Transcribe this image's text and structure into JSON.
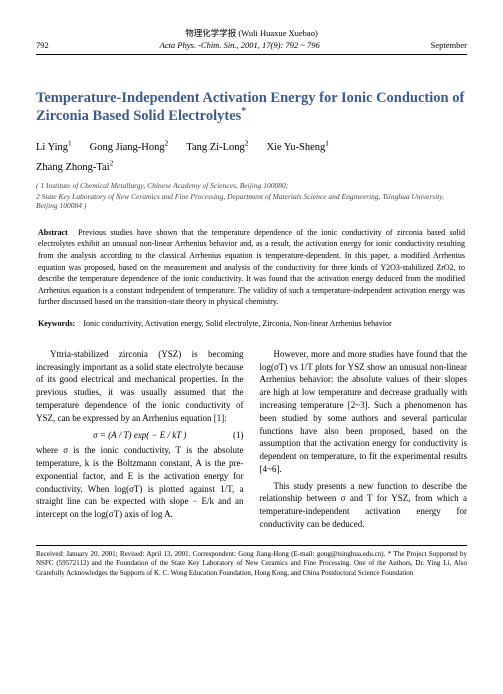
{
  "header": {
    "journal_cn": "物理化学学报 (Wuli Huaxue Xuebao)",
    "page_left": "792",
    "center": "Acta Phys. -Chim. Sin., 2001, 17(9): 792 ~ 796",
    "page_right": "September"
  },
  "title": "Temperature-Independent Activation Energy for Ionic Conduction of Zirconia Based Solid Electrolytes",
  "title_sup": "*",
  "authors_line1": [
    {
      "name": "Li Ying",
      "sup": "1"
    },
    {
      "name": "Gong Jiang-Hong",
      "sup": "2"
    },
    {
      "name": "Tang Zi-Long",
      "sup": "2"
    },
    {
      "name": "Xie Yu-Sheng",
      "sup": "1"
    }
  ],
  "authors_line2": [
    {
      "name": "Zhang Zhong-Tai",
      "sup": "2"
    }
  ],
  "affiliations": [
    "( 1 Institute of Chemical Metallurgy, Chinese Academy of Sciences, Beijing   100080;",
    "2 State Key Laboratory of New Ceramics and Fine Processing, Department of Materials Science and Engineering, Tsinghua University, Beijing   100084 )"
  ],
  "abstract_label": "Abstract",
  "abstract": "Previous studies have shown that the temperature dependence of the ionic conductivity of zirconia based solid electrolytes exhibit an unusual non-linear Arrhenius behavior and, as a result, the activation energy for ionic conductivity resulting from the analysis according to the classical Arrhenius equation is temperature-dependent. In this paper, a modified Arrhenius equation was proposed, based on the measurement and analysis of the conductivity for three kinds of Y2O3-stabilized ZrO2, to describe the temperature dependence of the ionic conductivity. It was found that the activation energy deduced from the modified Arrhenius equation is a constant independent of temperature. The validity of such a temperature-independent activation energy was further discussed based on the transition-state theory in physical chemistry.",
  "keywords_label": "Keywords:",
  "keywords": "Ionic conductivity,    Activation energy,    Solid electrolyte,    Zirconia, Non-linear Arrhenius behavior",
  "body": {
    "left": {
      "p1": "Yttria-stabilized zirconia (YSZ) is becoming increasingly important as a solid state electrolyte because of its good electrical and mechanical properties. In the previous studies, it was usually assumed that the temperature dependence of the ionic conductivity of YSZ, can be expressed by an Arrhenius equation [1]:",
      "eq": "σ = (A / T) exp( − E / kT )",
      "eq_num": "(1)",
      "p2": "where σ is the ionic conductivity, T is the absolute temperature, k is the Boltzmann constant, A is the pre-exponential factor, and E is the activation energy for conductivity. When log(σT) is plotted against 1/T, a straight line can be expected with slope − E/k and an intercept on the log(σT) axis of log A."
    },
    "right": {
      "p1": "However, more and more studies have found that the log(σT) vs 1/T plots for YSZ show an unusual non-linear Arrhenius behavior: the absolute values of their slopes are high at low temperature and decrease gradually with increasing temperature [2~3]. Such a phenomenon has been studied by some authors and several particular functions have also been proposed, based on the assumption that the activation energy for conductivity is dependent on temperature, to fit the experimental results [4~6].",
      "p2": "This study presents a new function to describe the relationship between σ and T for YSZ, from which a temperature-independent activation energy for conductivity can be deduced."
    }
  },
  "footer": "Received: January 20, 2001; Revised: April 13, 2001. Correspondent: Gong Jiang-Hong (E-mail: gong@tsinghua.edu.cn).   * The Project Supported by NSFC (59572112) and the Foundation of the State Key Laboratory of New Ceramics and Fine Processing. One of the Authors, Dr. Ying Li, Also Gratefully Acknowledges the Supports of K. C. Wong Education Foundation, Hong Kong, and China Postdoctoral Science Foundation"
}
